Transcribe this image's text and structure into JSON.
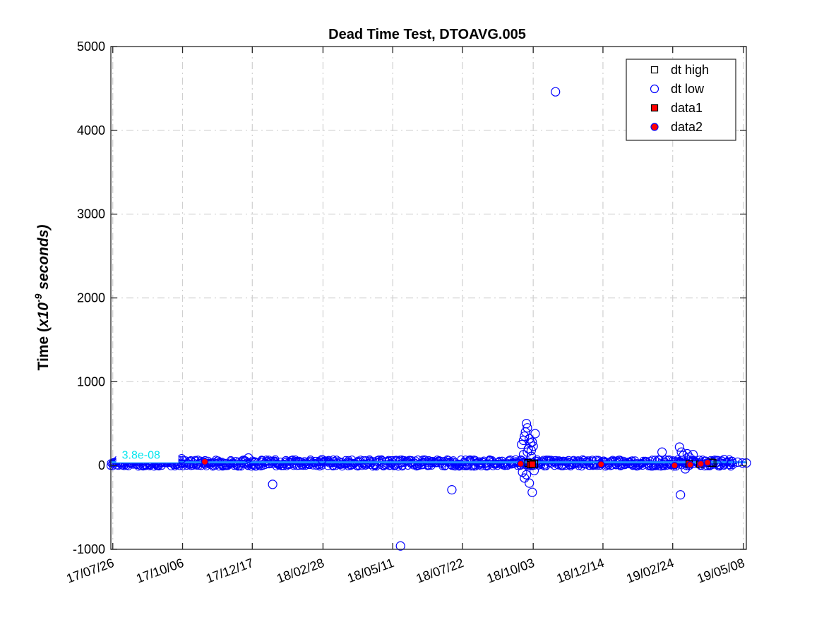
{
  "chart_data": {
    "type": "scatter",
    "title": "Dead Time Test, DTOAVG.005",
    "ylabel": "Time (x10^-9 seconds)",
    "ylabel_parts": {
      "prefix": "Time (",
      "base": "x10",
      "exponent": "-9",
      "suffix": " seconds)"
    },
    "xlabel": "",
    "ylim": [
      -1000,
      5000
    ],
    "yticks": [
      -1000,
      0,
      1000,
      2000,
      3000,
      4000,
      5000
    ],
    "xlim": [
      "2017-07-24",
      "2019-05-11"
    ],
    "xticks": [
      {
        "date": "2017-07-26",
        "label": "17/07/26"
      },
      {
        "date": "2017-10-06",
        "label": "17/10/06"
      },
      {
        "date": "2017-12-17",
        "label": "17/12/17"
      },
      {
        "date": "2018-02-28",
        "label": "18/02/28"
      },
      {
        "date": "2018-05-11",
        "label": "18/05/11"
      },
      {
        "date": "2018-07-22",
        "label": "18/07/22"
      },
      {
        "date": "2018-10-03",
        "label": "18/10/03"
      },
      {
        "date": "2018-12-14",
        "label": "18/12/14"
      },
      {
        "date": "2019-02-24",
        "label": "19/02/24"
      },
      {
        "date": "2019-05-08",
        "label": "19/05/08"
      }
    ],
    "grid": true,
    "legend_position": "top-right",
    "annotation": {
      "text": "3.8e-08",
      "date": "2017-07-31",
      "y": 38
    },
    "reference_line": {
      "y": 38,
      "from": "2017-07-24",
      "to": "2019-05-11",
      "color": "#1e90ff"
    },
    "series": [
      {
        "name": "dt high",
        "marker": "square",
        "fill": "none",
        "stroke": "#000000",
        "points": [
          {
            "x": "2018-09-28",
            "y": 30
          },
          {
            "x": "2018-10-01",
            "y": 25
          },
          {
            "x": "2018-10-04",
            "y": 20
          },
          {
            "x": "2019-04-04",
            "y": 35
          },
          {
            "x": "2019-04-06",
            "y": 30
          }
        ]
      },
      {
        "name": "dt low",
        "marker": "circle",
        "fill": "none",
        "stroke": "#0000ff",
        "band": {
          "from": "2017-07-24",
          "to": "2019-04-28",
          "center": 30,
          "spread": 45
        },
        "points": [
          {
            "x": "2017-10-05",
            "y": 80
          },
          {
            "x": "2017-12-13",
            "y": 90
          },
          {
            "x": "2018-01-07",
            "y": -225
          },
          {
            "x": "2018-02-27",
            "y": 70
          },
          {
            "x": "2018-05-19",
            "y": -960
          },
          {
            "x": "2018-07-11",
            "y": -290
          },
          {
            "x": "2018-09-21",
            "y": 250
          },
          {
            "x": "2018-09-23",
            "y": 300
          },
          {
            "x": "2018-09-24",
            "y": 350
          },
          {
            "x": "2018-09-25",
            "y": 400
          },
          {
            "x": "2018-09-26",
            "y": 500
          },
          {
            "x": "2018-09-27",
            "y": 450
          },
          {
            "x": "2018-09-28",
            "y": 200
          },
          {
            "x": "2018-09-29",
            "y": 320
          },
          {
            "x": "2018-09-30",
            "y": 270
          },
          {
            "x": "2018-10-01",
            "y": 180
          },
          {
            "x": "2018-10-02",
            "y": 280
          },
          {
            "x": "2018-10-03",
            "y": 230
          },
          {
            "x": "2018-10-05",
            "y": 380
          },
          {
            "x": "2018-09-22",
            "y": -80
          },
          {
            "x": "2018-09-24",
            "y": -150
          },
          {
            "x": "2018-09-26",
            "y": -110
          },
          {
            "x": "2018-09-29",
            "y": -210
          },
          {
            "x": "2018-10-02",
            "y": -320
          },
          {
            "x": "2018-10-04",
            "y": -60
          },
          {
            "x": "2018-09-23",
            "y": 130
          },
          {
            "x": "2018-09-27",
            "y": 160
          },
          {
            "x": "2018-10-01",
            "y": 110
          },
          {
            "x": "2018-10-26",
            "y": 4460
          },
          {
            "x": "2019-02-13",
            "y": 160
          },
          {
            "x": "2019-03-03",
            "y": 220
          },
          {
            "x": "2019-03-04",
            "y": -350
          },
          {
            "x": "2019-03-05",
            "y": 160
          },
          {
            "x": "2019-03-07",
            "y": 120
          },
          {
            "x": "2019-03-09",
            "y": -40
          },
          {
            "x": "2019-03-11",
            "y": 140
          },
          {
            "x": "2019-03-13",
            "y": 100
          },
          {
            "x": "2019-03-17",
            "y": 130
          },
          {
            "x": "2019-04-18",
            "y": 70
          },
          {
            "x": "2019-04-26",
            "y": 50
          },
          {
            "x": "2019-05-02",
            "y": 40
          },
          {
            "x": "2019-05-07",
            "y": 30
          },
          {
            "x": "2019-05-11",
            "y": 30
          }
        ]
      },
      {
        "name": "data1",
        "marker": "square",
        "fill": "#ff0000",
        "stroke": "#000000",
        "points": [
          {
            "x": "2018-09-30",
            "y": 10
          },
          {
            "x": "2018-10-02",
            "y": 15
          },
          {
            "x": "2019-03-13",
            "y": 20
          },
          {
            "x": "2019-03-24",
            "y": 15
          }
        ]
      },
      {
        "name": "data2",
        "marker": "circle",
        "fill": "#ff0000",
        "stroke": "#0000ff",
        "points": [
          {
            "x": "2017-10-29",
            "y": 45
          },
          {
            "x": "2018-09-20",
            "y": 20
          },
          {
            "x": "2018-12-12",
            "y": 15
          },
          {
            "x": "2019-02-26",
            "y": 0
          },
          {
            "x": "2019-03-14",
            "y": 10
          },
          {
            "x": "2019-03-25",
            "y": 20
          },
          {
            "x": "2019-04-01",
            "y": 35
          }
        ]
      }
    ]
  }
}
